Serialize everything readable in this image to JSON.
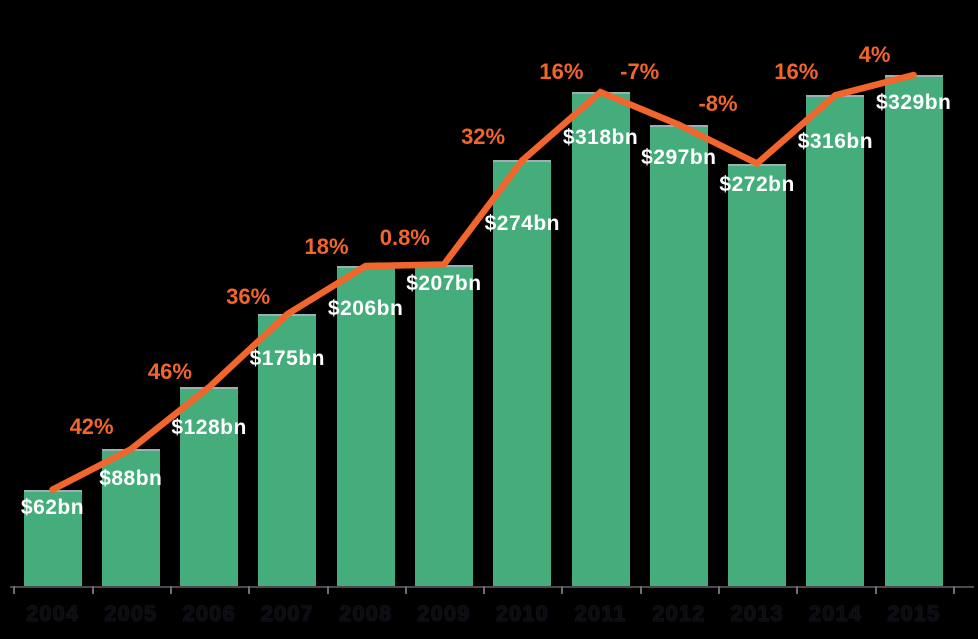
{
  "chart_data": {
    "type": "bar",
    "title": "",
    "xlabel": "",
    "ylabel": "",
    "categories": [
      "2004",
      "2005",
      "2006",
      "2007",
      "2008",
      "2009",
      "2010",
      "2011",
      "2012",
      "2013",
      "2014",
      "2015"
    ],
    "series": [
      {
        "name": "annual-value-bars",
        "type": "bar",
        "color": "#44AD7B",
        "values": [
          62,
          88,
          128,
          175,
          206,
          207,
          274,
          318,
          297,
          272,
          316,
          329
        ],
        "labels": [
          "$62bn",
          "$88bn",
          "$128bn",
          "$175bn",
          "$206bn",
          "$207bn",
          "$274bn",
          "$318bn",
          "$297bn",
          "$272bn",
          "$316bn",
          "$329bn"
        ],
        "label_color": "#FFFFFF",
        "unit": "bn"
      },
      {
        "name": "year-over-year-growth-line",
        "type": "line",
        "color": "#F2652C",
        "plotted_at": "bar-top-centers",
        "values": [
          42,
          46,
          36,
          18,
          0.8,
          32,
          16,
          -7,
          -8,
          16,
          4
        ],
        "labels": [
          "42%",
          "46%",
          "36%",
          "18%",
          "0.8%",
          "32%",
          "16%",
          "-7%",
          "-8%",
          "16%",
          "4%"
        ],
        "label_color": "#F2652C"
      }
    ],
    "ylim": [
      0,
      345
    ],
    "grid": false,
    "legend": "none",
    "background": "#000000",
    "axis": {
      "line_color": "#4A4A52",
      "tick_color": "#6E6E76",
      "year_label_color": "#0B0B12"
    }
  }
}
